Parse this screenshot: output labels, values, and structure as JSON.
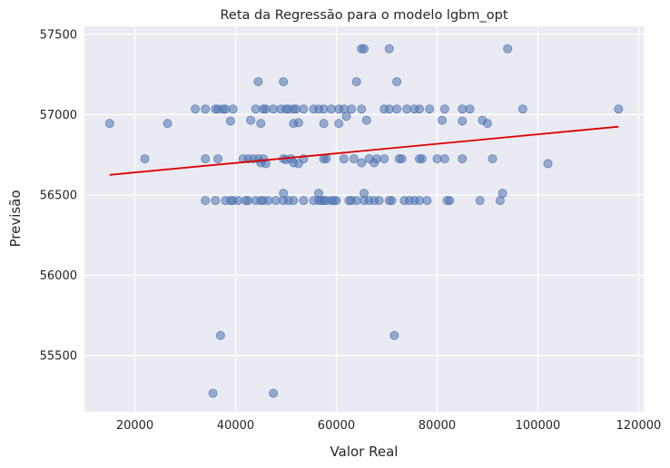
{
  "chart_data": {
    "type": "scatter",
    "title": "Reta da Regressão para o modelo lgbm_opt",
    "xlabel": "Valor Real",
    "ylabel": "Previsão",
    "xlim": [
      10000,
      121000
    ],
    "ylim": [
      55150,
      57550
    ],
    "x_ticks": [
      20000,
      40000,
      60000,
      80000,
      100000,
      120000
    ],
    "y_ticks": [
      55500,
      56000,
      56500,
      57000,
      57500
    ],
    "grid": true,
    "colors": {
      "background": "#eaeaf2",
      "grid": "#ffffff",
      "points": "#4c72b0",
      "line": "#dd0000"
    },
    "points": [
      [
        15000,
        56945
      ],
      [
        22000,
        56725
      ],
      [
        26500,
        56945
      ],
      [
        32000,
        57035
      ],
      [
        34000,
        57035
      ],
      [
        36000,
        57035
      ],
      [
        36500,
        57035
      ],
      [
        37500,
        57035
      ],
      [
        38000,
        57035
      ],
      [
        39500,
        57035
      ],
      [
        44000,
        57035
      ],
      [
        45500,
        57035
      ],
      [
        46000,
        57035
      ],
      [
        47500,
        57035
      ],
      [
        49000,
        57035
      ],
      [
        50000,
        57035
      ],
      [
        50500,
        57035
      ],
      [
        51500,
        57035
      ],
      [
        52000,
        57035
      ],
      [
        53500,
        57035
      ],
      [
        55500,
        57035
      ],
      [
        56500,
        57035
      ],
      [
        57500,
        57035
      ],
      [
        59000,
        57035
      ],
      [
        60500,
        57035
      ],
      [
        61500,
        57035
      ],
      [
        63000,
        57035
      ],
      [
        65000,
        57035
      ],
      [
        69500,
        57035
      ],
      [
        70500,
        57035
      ],
      [
        72000,
        57035
      ],
      [
        74000,
        57035
      ],
      [
        75500,
        57035
      ],
      [
        76500,
        57035
      ],
      [
        78500,
        57035
      ],
      [
        81500,
        57035
      ],
      [
        85000,
        57035
      ],
      [
        86500,
        57035
      ],
      [
        97000,
        57035
      ],
      [
        116000,
        57035
      ],
      [
        39000,
        56960
      ],
      [
        43000,
        56965
      ],
      [
        45000,
        56945
      ],
      [
        51500,
        56945
      ],
      [
        52500,
        56950
      ],
      [
        57500,
        56945
      ],
      [
        60500,
        56945
      ],
      [
        62000,
        56990
      ],
      [
        66000,
        56965
      ],
      [
        81000,
        56965
      ],
      [
        85000,
        56960
      ],
      [
        89000,
        56965
      ],
      [
        90000,
        56945
      ],
      [
        34000,
        56725
      ],
      [
        36500,
        56725
      ],
      [
        41500,
        56725
      ],
      [
        42500,
        56725
      ],
      [
        43500,
        56725
      ],
      [
        44500,
        56725
      ],
      [
        45500,
        56725
      ],
      [
        45000,
        56700
      ],
      [
        46000,
        56695
      ],
      [
        49500,
        56725
      ],
      [
        50000,
        56720
      ],
      [
        51000,
        56725
      ],
      [
        51500,
        56700
      ],
      [
        52500,
        56695
      ],
      [
        53500,
        56725
      ],
      [
        57500,
        56725
      ],
      [
        58000,
        56725
      ],
      [
        61500,
        56725
      ],
      [
        63500,
        56725
      ],
      [
        65000,
        56700
      ],
      [
        66500,
        56725
      ],
      [
        67500,
        56700
      ],
      [
        68000,
        56725
      ],
      [
        69500,
        56725
      ],
      [
        72500,
        56725
      ],
      [
        73000,
        56725
      ],
      [
        76500,
        56725
      ],
      [
        77000,
        56725
      ],
      [
        80000,
        56725
      ],
      [
        81500,
        56725
      ],
      [
        85000,
        56725
      ],
      [
        91000,
        56725
      ],
      [
        102000,
        56695
      ],
      [
        34000,
        56465
      ],
      [
        36000,
        56465
      ],
      [
        38000,
        56465
      ],
      [
        39000,
        56465
      ],
      [
        39500,
        56465
      ],
      [
        40500,
        56465
      ],
      [
        42000,
        56465
      ],
      [
        42500,
        56465
      ],
      [
        44000,
        56465
      ],
      [
        45000,
        56465
      ],
      [
        45500,
        56465
      ],
      [
        46500,
        56465
      ],
      [
        48000,
        56465
      ],
      [
        49500,
        56465
      ],
      [
        50500,
        56465
      ],
      [
        51500,
        56465
      ],
      [
        53500,
        56465
      ],
      [
        55500,
        56465
      ],
      [
        56500,
        56465
      ],
      [
        57000,
        56465
      ],
      [
        57500,
        56465
      ],
      [
        58000,
        56465
      ],
      [
        59000,
        56465
      ],
      [
        59500,
        56465
      ],
      [
        60000,
        56465
      ],
      [
        62500,
        56465
      ],
      [
        63000,
        56465
      ],
      [
        64000,
        56465
      ],
      [
        65500,
        56465
      ],
      [
        66500,
        56465
      ],
      [
        67500,
        56465
      ],
      [
        68500,
        56465
      ],
      [
        70500,
        56465
      ],
      [
        71000,
        56465
      ],
      [
        73500,
        56465
      ],
      [
        74500,
        56465
      ],
      [
        75500,
        56465
      ],
      [
        76500,
        56465
      ],
      [
        78000,
        56465
      ],
      [
        82000,
        56465
      ],
      [
        82500,
        56465
      ],
      [
        88500,
        56465
      ],
      [
        92500,
        56465
      ],
      [
        49500,
        56510
      ],
      [
        56500,
        56510
      ],
      [
        65500,
        56510
      ],
      [
        93000,
        56510
      ],
      [
        44500,
        57205
      ],
      [
        49500,
        57205
      ],
      [
        64000,
        57205
      ],
      [
        72000,
        57205
      ],
      [
        65000,
        57410
      ],
      [
        65500,
        57410
      ],
      [
        70500,
        57410
      ],
      [
        94000,
        57410
      ],
      [
        37000,
        55625
      ],
      [
        71500,
        55625
      ],
      [
        35500,
        55265
      ],
      [
        47500,
        55265
      ]
    ],
    "regression_line": {
      "x": [
        15000,
        116000
      ],
      "y": [
        56625,
        56925
      ]
    }
  }
}
